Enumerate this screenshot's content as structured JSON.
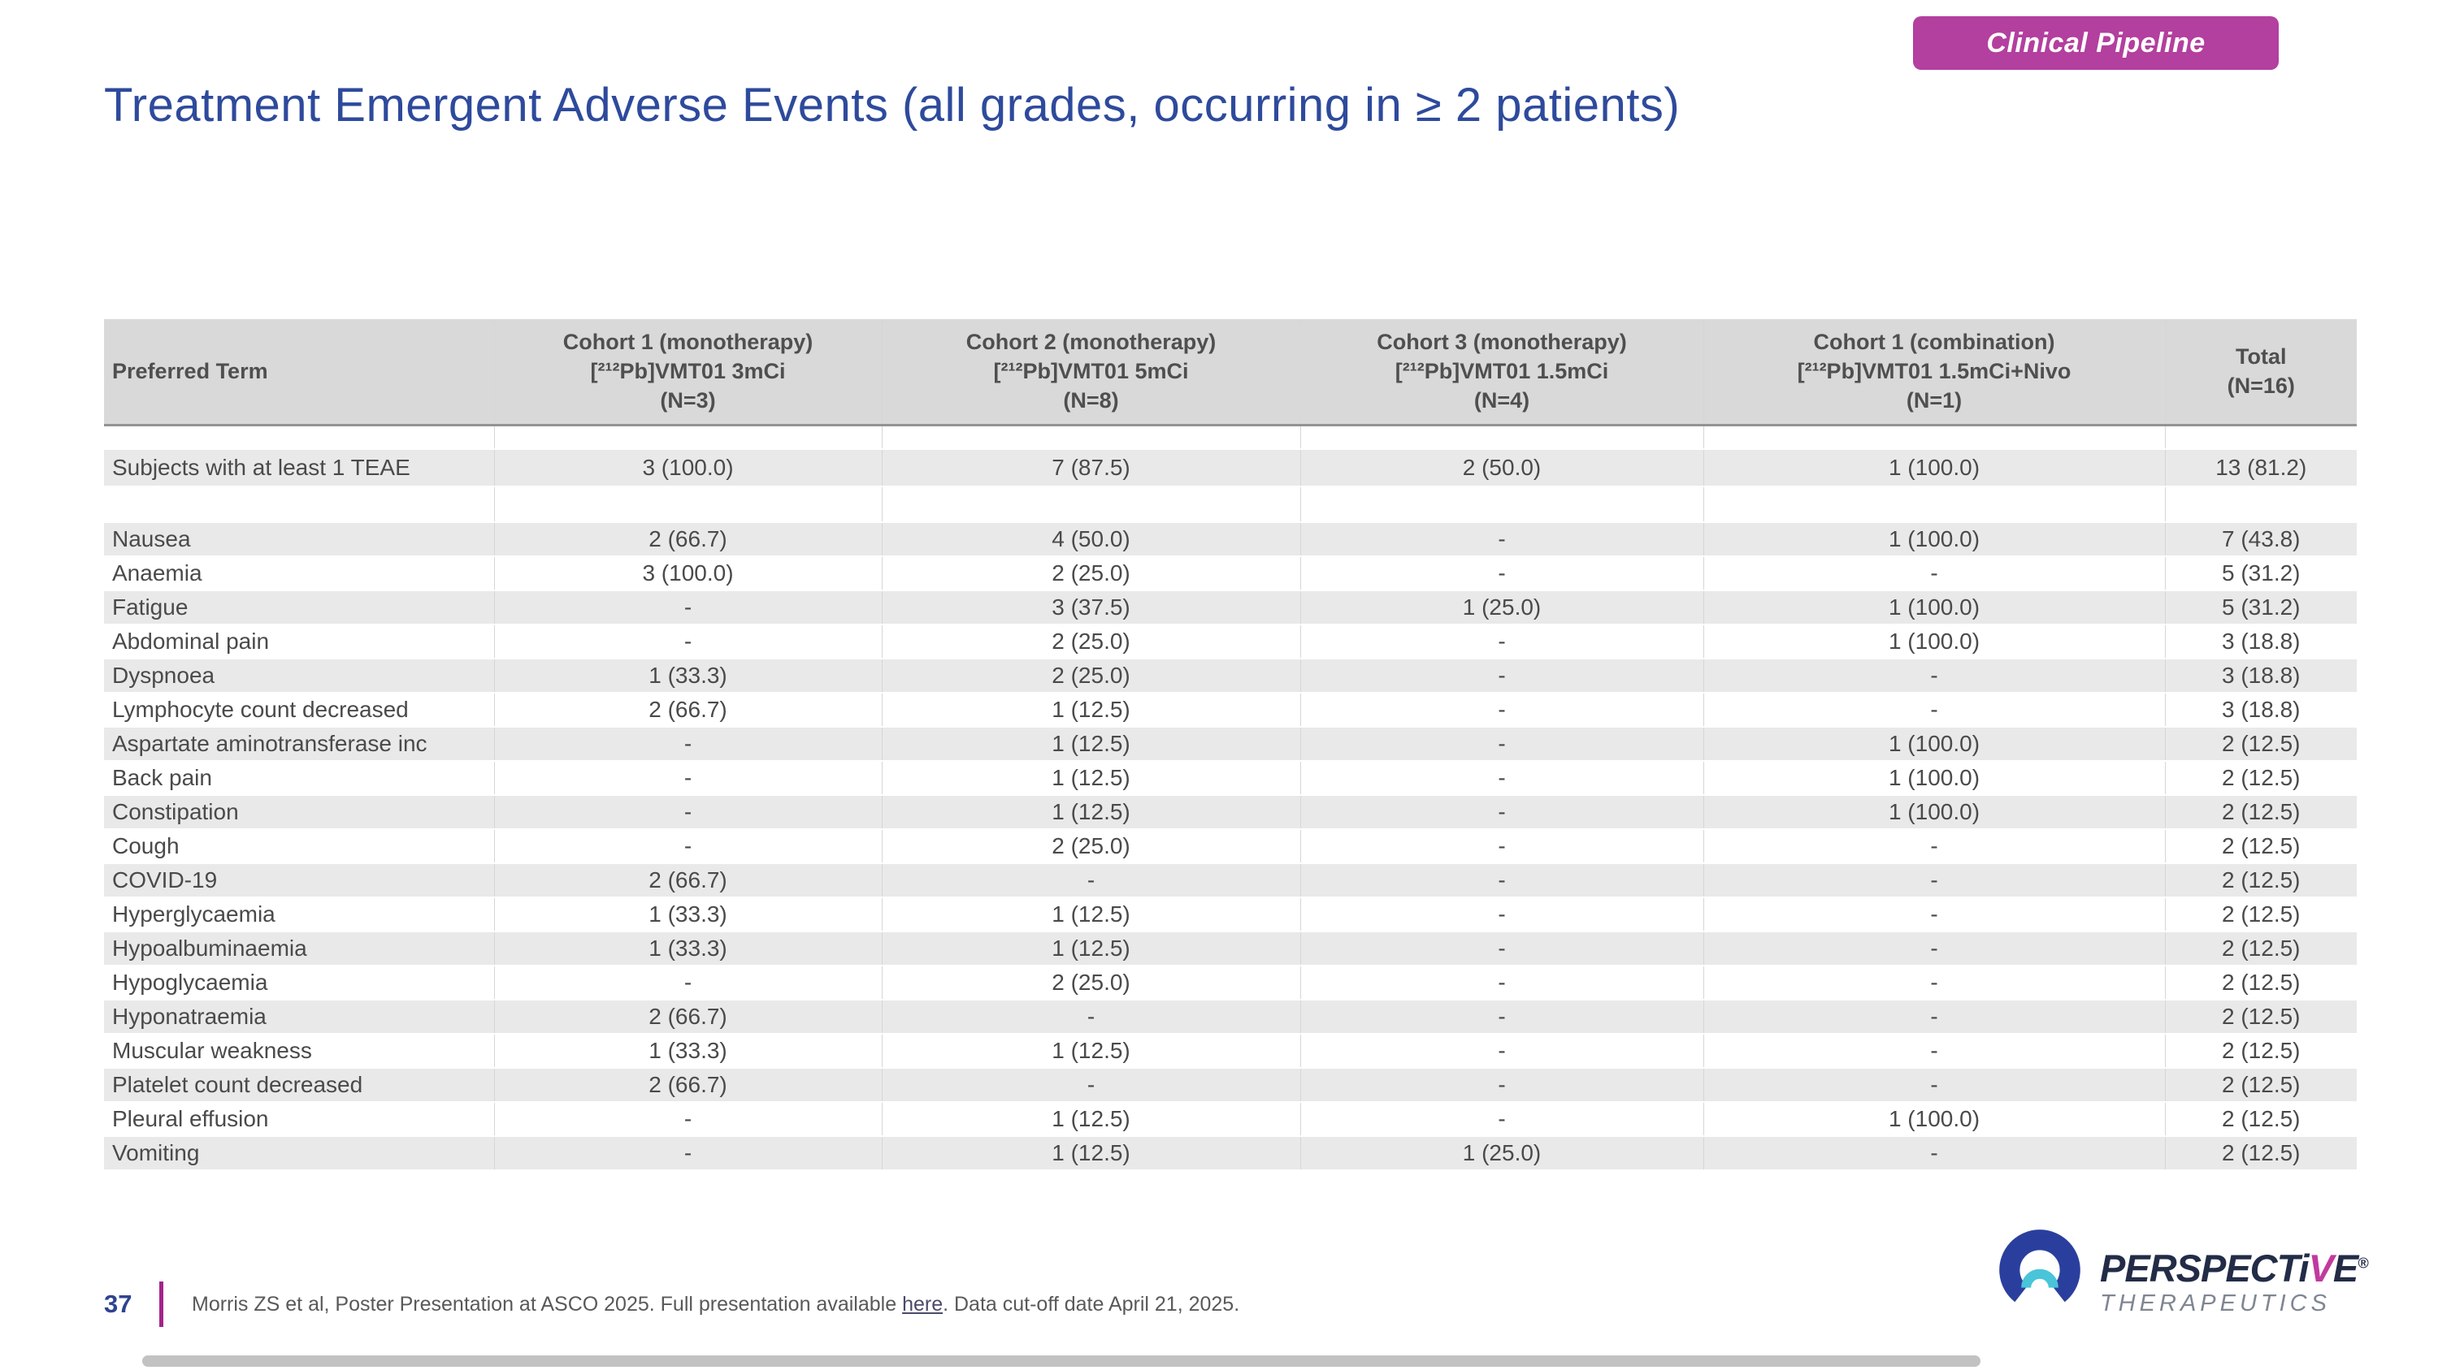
{
  "badge": {
    "label": "Clinical Pipeline"
  },
  "title": "Treatment Emergent Adverse Events (all grades, occurring in ≥ 2 patients)",
  "table": {
    "header": {
      "preferred_term": "Preferred Term",
      "cohorts": [
        {
          "lines": [
            "Cohort 1 (monotherapy)",
            "[²¹²Pb]VMT01 3mCi",
            "(N=3)"
          ]
        },
        {
          "lines": [
            "Cohort 2 (monotherapy)",
            "[²¹²Pb]VMT01 5mCi",
            "(N=8)"
          ]
        },
        {
          "lines": [
            "Cohort 3 (monotherapy)",
            "[²¹²Pb]VMT01 1.5mCi",
            "(N=4)"
          ]
        },
        {
          "lines": [
            "Cohort 1 (combination)",
            "[²¹²Pb]VMT01 1.5mCi+Nivo",
            "(N=1)"
          ]
        },
        {
          "lines": [
            "Total",
            "(N=16)"
          ]
        }
      ]
    },
    "summary_row": {
      "term": "Subjects with at least 1 TEAE",
      "values": [
        "3 (100.0)",
        "7 (87.5)",
        "2 (50.0)",
        "1 (100.0)",
        "13 (81.2)"
      ]
    },
    "rows": [
      {
        "term": "Nausea",
        "values": [
          "2 (66.7)",
          "4 (50.0)",
          "-",
          "1 (100.0)",
          "7 (43.8)"
        ]
      },
      {
        "term": "Anaemia",
        "values": [
          "3 (100.0)",
          "2 (25.0)",
          "-",
          "-",
          "5 (31.2)"
        ]
      },
      {
        "term": "Fatigue",
        "values": [
          "-",
          "3 (37.5)",
          "1 (25.0)",
          "1 (100.0)",
          "5 (31.2)"
        ]
      },
      {
        "term": "Abdominal pain",
        "values": [
          "-",
          "2 (25.0)",
          "-",
          "1 (100.0)",
          "3 (18.8)"
        ]
      },
      {
        "term": "Dyspnoea",
        "values": [
          "1 (33.3)",
          "2 (25.0)",
          "-",
          "-",
          "3 (18.8)"
        ]
      },
      {
        "term": "Lymphocyte count decreased",
        "values": [
          "2 (66.7)",
          "1 (12.5)",
          "-",
          "-",
          "3 (18.8)"
        ]
      },
      {
        "term": "Aspartate aminotransferase inc",
        "values": [
          "-",
          "1 (12.5)",
          "-",
          "1 (100.0)",
          "2 (12.5)"
        ]
      },
      {
        "term": "Back pain",
        "values": [
          "-",
          "1 (12.5)",
          "-",
          "1 (100.0)",
          "2 (12.5)"
        ]
      },
      {
        "term": "Constipation",
        "values": [
          "-",
          "1 (12.5)",
          "-",
          "1 (100.0)",
          "2 (12.5)"
        ]
      },
      {
        "term": "Cough",
        "values": [
          "-",
          "2 (25.0)",
          "-",
          "-",
          "2 (12.5)"
        ]
      },
      {
        "term": "COVID-19",
        "values": [
          "2 (66.7)",
          "-",
          "-",
          "-",
          "2 (12.5)"
        ]
      },
      {
        "term": "Hyperglycaemia",
        "values": [
          "1 (33.3)",
          "1 (12.5)",
          "-",
          "-",
          "2 (12.5)"
        ]
      },
      {
        "term": "Hypoalbuminaemia",
        "values": [
          "1 (33.3)",
          "1 (12.5)",
          "-",
          "-",
          "2 (12.5)"
        ]
      },
      {
        "term": "Hypoglycaemia",
        "values": [
          "-",
          "2 (25.0)",
          "-",
          "-",
          "2 (12.5)"
        ]
      },
      {
        "term": "Hyponatraemia",
        "values": [
          "2 (66.7)",
          "-",
          "-",
          "-",
          "2 (12.5)"
        ]
      },
      {
        "term": "Muscular weakness",
        "values": [
          "1 (33.3)",
          "1 (12.5)",
          "-",
          "-",
          "2 (12.5)"
        ]
      },
      {
        "term": "Platelet count decreased",
        "values": [
          "2 (66.7)",
          "-",
          "-",
          "-",
          "2 (12.5)"
        ]
      },
      {
        "term": "Pleural effusion",
        "values": [
          "-",
          "1 (12.5)",
          "-",
          "1 (100.0)",
          "2 (12.5)"
        ]
      },
      {
        "term": "Vomiting",
        "values": [
          "-",
          "1 (12.5)",
          "1 (25.0)",
          "-",
          "2 (12.5)"
        ]
      }
    ]
  },
  "footer": {
    "page_number": "37",
    "citation_prefix": "Morris ZS et al, Poster Presentation at ASCO 2025. Full presentation available ",
    "citation_link": "here",
    "citation_suffix": ". Data cut-off date April 21, 2025."
  },
  "logo": {
    "word_main": "PERSPECT",
    "word_i": "i",
    "word_v": "V",
    "word_e": "E",
    "registered": "®",
    "subtitle": "THERAPEUTICS"
  },
  "colors": {
    "title_blue": "#2e4a9c",
    "badge_magenta": "#b33f9f",
    "footer_bar_magenta": "#a3238e",
    "page_number_blue": "#2e4491",
    "header_gray": "#d9d9d9",
    "stripe_gray": "#e9e9e9",
    "logo_ring_blue": "#2a3f9d",
    "logo_teal": "#49c4d8",
    "logo_navy": "#232c47",
    "logo_v_magenta": "#c13a9e"
  }
}
